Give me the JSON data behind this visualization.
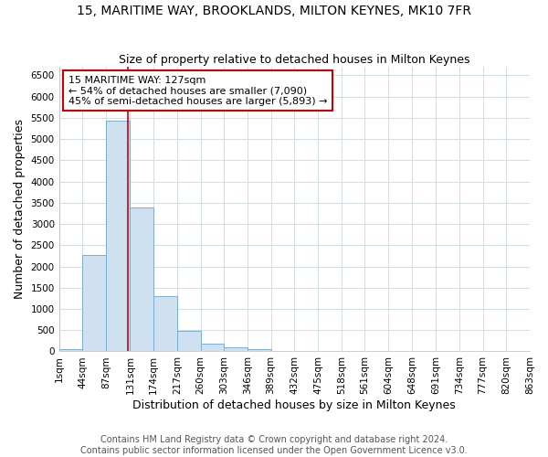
{
  "title": "15, MARITIME WAY, BROOKLANDS, MILTON KEYNES, MK10 7FR",
  "subtitle": "Size of property relative to detached houses in Milton Keynes",
  "xlabel": "Distribution of detached houses by size in Milton Keynes",
  "ylabel": "Number of detached properties",
  "bin_edges": [
    1,
    44,
    87,
    131,
    174,
    217,
    260,
    303,
    346,
    389,
    432,
    475,
    518,
    561,
    604,
    648,
    691,
    734,
    777,
    820,
    863
  ],
  "bar_heights": [
    50,
    2280,
    5440,
    3380,
    1300,
    480,
    190,
    90,
    50,
    15,
    5,
    3,
    2,
    1,
    1,
    1,
    1,
    1,
    1,
    1
  ],
  "bar_color": "#cfe0f0",
  "bar_edge_color": "#7aafd4",
  "vline_x": 127,
  "vline_color": "#cc0000",
  "annotation_text": "15 MARITIME WAY: 127sqm\n← 54% of detached houses are smaller (7,090)\n45% of semi-detached houses are larger (5,893) →",
  "annotation_box_facecolor": "white",
  "annotation_box_edgecolor": "#cc0000",
  "ylim": [
    0,
    6700
  ],
  "yticks": [
    0,
    500,
    1000,
    1500,
    2000,
    2500,
    3000,
    3500,
    4000,
    4500,
    5000,
    5500,
    6000,
    6500
  ],
  "tick_labels": [
    "1sqm",
    "44sqm",
    "87sqm",
    "131sqm",
    "174sqm",
    "217sqm",
    "260sqm",
    "303sqm",
    "346sqm",
    "389sqm",
    "432sqm",
    "475sqm",
    "518sqm",
    "561sqm",
    "604sqm",
    "648sqm",
    "691sqm",
    "734sqm",
    "777sqm",
    "820sqm",
    "863sqm"
  ],
  "footer_text": "Contains HM Land Registry data © Crown copyright and database right 2024.\nContains public sector information licensed under the Open Government Licence v3.0.",
  "background_color": "#ffffff",
  "plot_bg_color": "#ffffff",
  "grid_color": "#d0dce8",
  "title_fontsize": 10,
  "subtitle_fontsize": 9,
  "axis_label_fontsize": 9,
  "tick_fontsize": 7.5,
  "footer_fontsize": 7
}
